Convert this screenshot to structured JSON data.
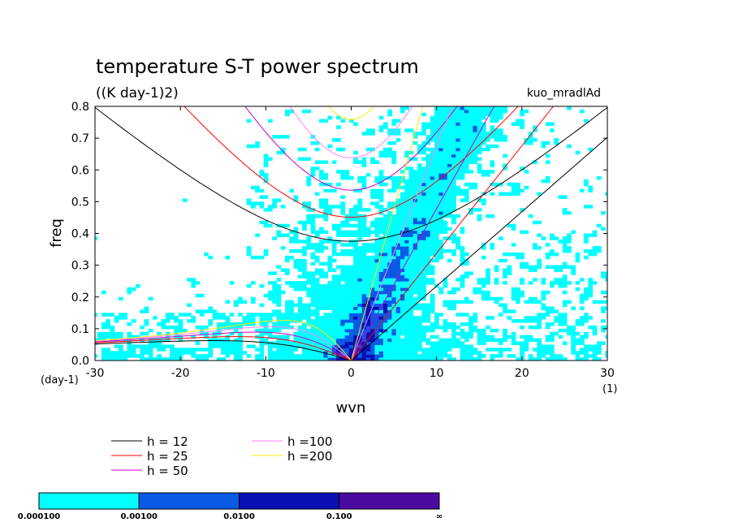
{
  "chart_data": {
    "type": "heatmap",
    "title": "temperature S-T power spectrum",
    "subtitle": "((K day-1)2)",
    "label_right": "kuo_mradlAd",
    "xlabel": "wvn",
    "ylabel": "freq",
    "x_unit": "(1)",
    "y_unit": "(day-1)",
    "xlim": [
      -30,
      30
    ],
    "ylim": [
      0,
      0.8
    ],
    "xticks": [
      "-30",
      "-20",
      "-10",
      "0",
      "10",
      "20",
      "30"
    ],
    "yticks": [
      "0.0",
      "0.1",
      "0.2",
      "0.3",
      "0.4",
      "0.5",
      "0.6",
      "0.7",
      "0.8"
    ],
    "colorbar": {
      "labels": [
        "0.000100",
        "0.00100",
        "0.0100",
        "0.100",
        "∞"
      ],
      "colors": [
        "#00ffff",
        "#0a5ae6",
        "#0a10b4",
        "#4c0aa0"
      ]
    },
    "series": [
      {
        "name": "h = 12",
        "equivalent_depth": 12,
        "color": "#000000"
      },
      {
        "name": "h = 25",
        "equivalent_depth": 25,
        "color": "#ff0000"
      },
      {
        "name": "h = 50",
        "equivalent_depth": 50,
        "color": "#c800c8"
      },
      {
        "name": "h =100",
        "equivalent_depth": 100,
        "color": "#ff80ff"
      },
      {
        "name": "h =200",
        "equivalent_depth": 200,
        "color": "#ffe600"
      }
    ]
  }
}
